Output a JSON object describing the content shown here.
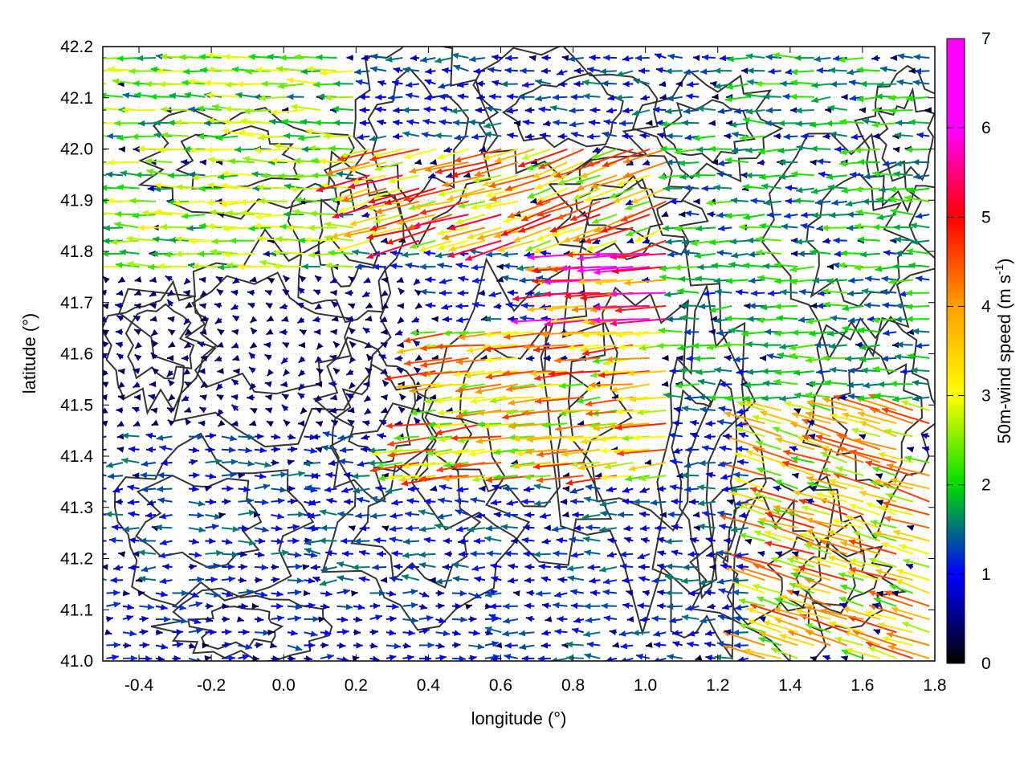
{
  "chart_data": {
    "type": "vector-field",
    "xlabel": "longitude (°)",
    "ylabel": "latitude (°)",
    "colorbar_label": "50m-wind speed (m s-1)",
    "colorbar_label_parts": {
      "main": "50m-wind speed (m s",
      "sup": "-1",
      "close": ")"
    },
    "xlim": [
      -0.5,
      1.8
    ],
    "ylim": [
      41.0,
      42.2
    ],
    "x_ticks": [
      "-0.4",
      "-0.2",
      "0.0",
      "0.2",
      "0.4",
      "0.6",
      "0.8",
      "1.0",
      "1.2",
      "1.4",
      "1.6",
      "1.8"
    ],
    "x_tick_values": [
      -0.4,
      -0.2,
      0.0,
      0.2,
      0.4,
      0.6,
      0.8,
      1.0,
      1.2,
      1.4,
      1.6,
      1.8
    ],
    "y_ticks": [
      "41.0",
      "41.1",
      "41.2",
      "41.3",
      "41.4",
      "41.5",
      "41.6",
      "41.7",
      "41.8",
      "41.9",
      "42.0",
      "42.1",
      "42.2"
    ],
    "y_tick_values": [
      41.0,
      41.1,
      41.2,
      41.3,
      41.4,
      41.5,
      41.6,
      41.7,
      41.8,
      41.9,
      42.0,
      42.1,
      42.2
    ],
    "colorbar_range": [
      0,
      7
    ],
    "colorbar_ticks": [
      "0",
      "1",
      "2",
      "3",
      "4",
      "5",
      "6",
      "7"
    ],
    "colormap": [
      "#000000",
      "#0000ff",
      "#00dd00",
      "#ffff00",
      "#ffa000",
      "#ff0000",
      "#ff00ff"
    ],
    "grid": true,
    "contour_color": "#333333",
    "wind_regions": [
      {
        "lon": [
          -0.5,
          0.2
        ],
        "lat": [
          41.75,
          42.2
        ],
        "u": -3.0,
        "v": 0.1,
        "speed": 3.0
      },
      {
        "lon": [
          0.2,
          0.7
        ],
        "lat": [
          41.8,
          42.0
        ],
        "u": -4.5,
        "v": -1.2,
        "speed": 5.0
      },
      {
        "lon": [
          0.7,
          1.3
        ],
        "lat": [
          41.8,
          42.0
        ],
        "u": -4.0,
        "v": -1.5,
        "speed": 4.8
      },
      {
        "lon": [
          0.75,
          1.2
        ],
        "lat": [
          41.65,
          41.8
        ],
        "u": -6.0,
        "v": -0.4,
        "speed": 6.2
      },
      {
        "lon": [
          0.3,
          1.1
        ],
        "lat": [
          41.35,
          41.65
        ],
        "u": -4.5,
        "v": -0.5,
        "speed": 4.6
      },
      {
        "lon": [
          -0.5,
          0.4
        ],
        "lat": [
          41.45,
          41.75
        ],
        "u": -0.3,
        "v": 0.0,
        "speed": 0.6
      },
      {
        "lon": [
          -0.3,
          0.1
        ],
        "lat": [
          41.15,
          41.45
        ],
        "u": 1.5,
        "v": 0.0,
        "speed": 1.5
      },
      {
        "lon": [
          -0.5,
          0.6
        ],
        "lat": [
          41.0,
          41.15
        ],
        "u": 1.2,
        "v": 0.0,
        "speed": 1.3
      },
      {
        "lon": [
          1.3,
          1.8
        ],
        "lat": [
          41.0,
          41.5
        ],
        "u": -4.0,
        "v": 1.2,
        "speed": 4.5
      },
      {
        "lon": [
          1.1,
          1.8
        ],
        "lat": [
          41.5,
          42.2
        ],
        "u": -2.0,
        "v": 0.0,
        "speed": 2.2
      }
    ]
  }
}
